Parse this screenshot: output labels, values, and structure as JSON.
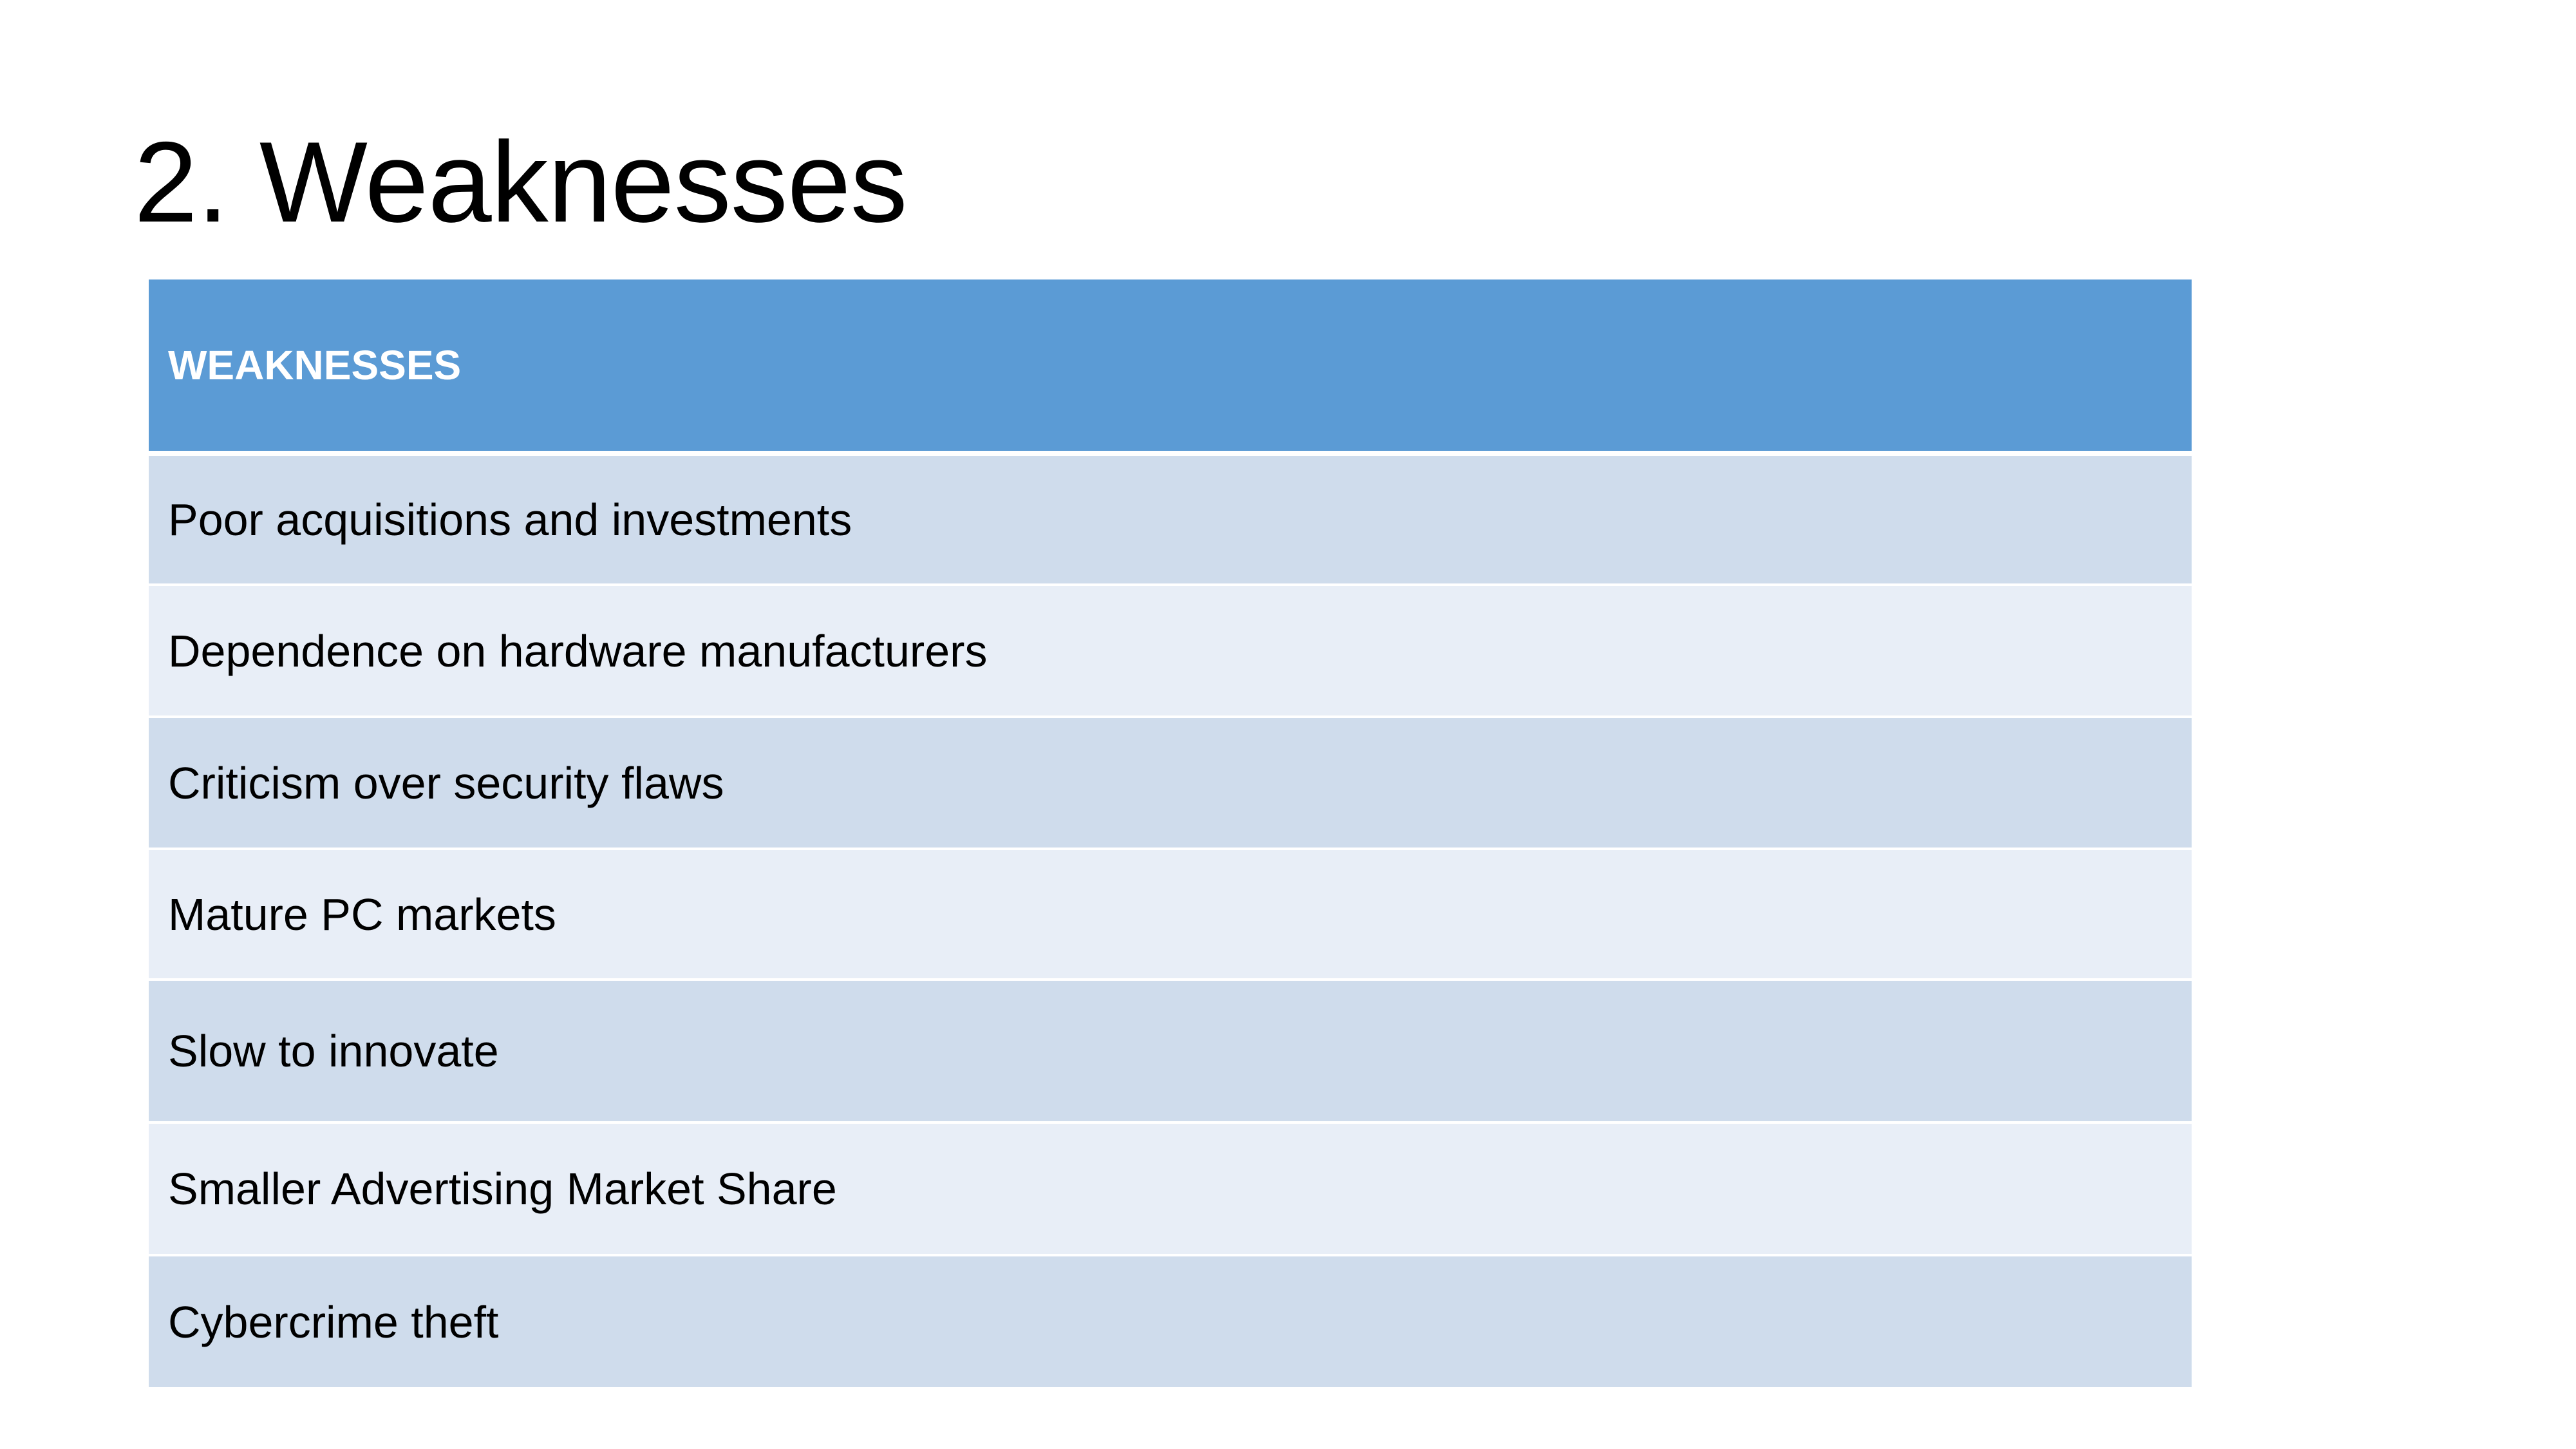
{
  "slide": {
    "title": "2. Weaknesses"
  },
  "table": {
    "header": "WEAKNESSES",
    "rows": [
      "Poor acquisitions and investments",
      "Dependence on hardware manufacturers",
      "Criticism over security flaws",
      "Mature PC markets",
      "Slow to innovate",
      "Smaller Advertising Market Share",
      "Cybercrime theft"
    ]
  },
  "colors": {
    "header_fill": "#5b9bd5",
    "row_dark": "#cfdcec",
    "row_light": "#e8eef7",
    "header_text": "#ffffff"
  }
}
